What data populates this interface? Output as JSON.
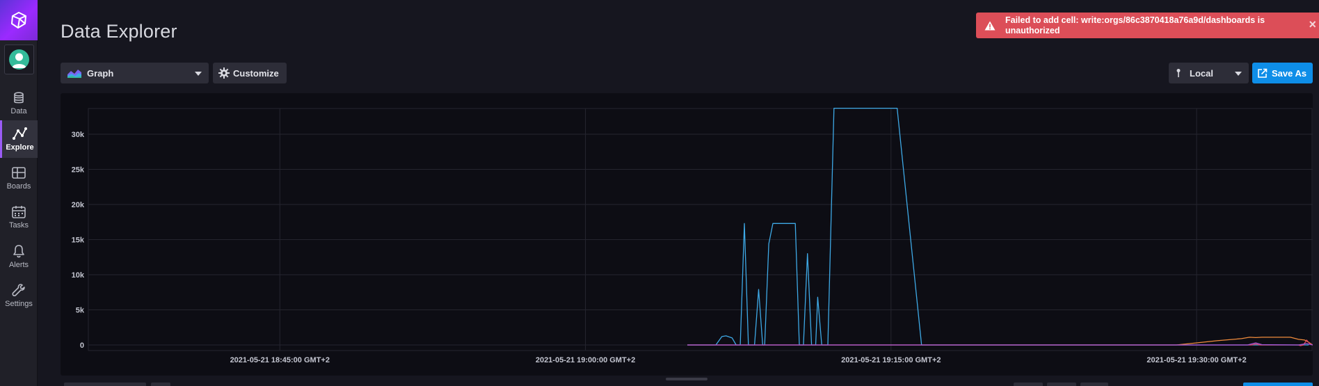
{
  "sidebar": {
    "logo_icon": "influx-cube-icon",
    "avatar_icon": "user-avatar-icon",
    "items": [
      {
        "label": "Data",
        "icon": "database-icon",
        "active": false
      },
      {
        "label": "Explore",
        "icon": "graph-line-icon",
        "active": true
      },
      {
        "label": "Boards",
        "icon": "dashboard-grid-icon",
        "active": false
      },
      {
        "label": "Tasks",
        "icon": "calendar-icon",
        "active": false
      },
      {
        "label": "Alerts",
        "icon": "bell-icon",
        "active": false
      },
      {
        "label": "Settings",
        "icon": "wrench-icon",
        "active": false
      }
    ]
  },
  "header": {
    "title": "Data Explorer"
  },
  "toolbar": {
    "view_type": "Graph",
    "customize_label": "Customize",
    "timezone": "Local",
    "save_as_label": "Save As"
  },
  "alert": {
    "message": "Failed to add cell: write:orgs/86c3870418a76a9d/dashboards is unauthorized",
    "close_symbol": "×"
  },
  "colors": {
    "accent": "#0e8ee8",
    "alert_bg": "#dc4e58",
    "series_blue": "#3ea9e6",
    "series_orange": "#f08b3c",
    "series_red": "#e0445e",
    "series_purple": "#9f56d8"
  },
  "chart_data": {
    "type": "line",
    "y_ticks": [
      0,
      5000,
      10000,
      15000,
      20000,
      25000,
      30000
    ],
    "y_tick_labels": [
      "0",
      "5k",
      "10k",
      "15k",
      "20k",
      "25k",
      "30k"
    ],
    "ylim": [
      0,
      34000
    ],
    "x_tick_labels": [
      "2021-05-21 18:45:00 GMT+2",
      "2021-05-21 19:00:00 GMT+2",
      "2021-05-21 19:15:00 GMT+2",
      "2021-05-21 19:30:00 GMT+2"
    ],
    "x_ticks_min": [
      0,
      15,
      30,
      45
    ],
    "xlim_min": [
      -9.4,
      50.7
    ],
    "grid": true,
    "series": [
      {
        "color": "#3ea9e6",
        "points": [
          [
            20.0,
            0
          ],
          [
            21.4,
            0
          ],
          [
            21.7,
            1200
          ],
          [
            21.9,
            1300
          ],
          [
            22.2,
            1000
          ],
          [
            22.4,
            0
          ],
          [
            22.6,
            0
          ],
          [
            22.8,
            17300
          ],
          [
            23.0,
            0
          ],
          [
            23.3,
            0
          ],
          [
            23.5,
            7900
          ],
          [
            23.7,
            0
          ],
          [
            23.8,
            0
          ],
          [
            24.0,
            14400
          ],
          [
            24.2,
            17300
          ],
          [
            25.0,
            17300
          ],
          [
            25.3,
            17300
          ],
          [
            25.5,
            0
          ],
          [
            25.7,
            0
          ],
          [
            25.9,
            13000
          ],
          [
            26.1,
            0
          ],
          [
            26.3,
            0
          ],
          [
            26.4,
            6800
          ],
          [
            26.6,
            0
          ],
          [
            26.9,
            0
          ],
          [
            27.2,
            33700
          ],
          [
            28.8,
            33700
          ],
          [
            30.0,
            33700
          ],
          [
            30.3,
            33700
          ],
          [
            31.5,
            0
          ],
          [
            41.0,
            0
          ],
          [
            50.5,
            0
          ]
        ]
      },
      {
        "color": "#f08b3c",
        "points": [
          [
            20.0,
            0
          ],
          [
            32.0,
            0
          ],
          [
            38.0,
            0
          ],
          [
            44.0,
            0
          ],
          [
            45.0,
            300
          ],
          [
            46.0,
            600
          ],
          [
            47.2,
            900
          ],
          [
            47.6,
            1100
          ],
          [
            47.9,
            1050
          ],
          [
            48.2,
            1100
          ],
          [
            49.0,
            1100
          ],
          [
            49.6,
            1100
          ],
          [
            50.0,
            800
          ],
          [
            50.3,
            700
          ],
          [
            50.5,
            400
          ],
          [
            50.7,
            0
          ]
        ]
      },
      {
        "color": "#e0445e",
        "points": [
          [
            20.0,
            0
          ],
          [
            30.0,
            0
          ],
          [
            45.0,
            0
          ],
          [
            47.7,
            0
          ],
          [
            47.9,
            150
          ],
          [
            48.1,
            0
          ],
          [
            50.0,
            0
          ],
          [
            50.1,
            -100
          ],
          [
            50.25,
            0
          ],
          [
            50.4,
            700
          ],
          [
            50.55,
            200
          ],
          [
            50.7,
            0
          ]
        ]
      },
      {
        "color": "#9f56d8",
        "points": [
          [
            20.0,
            0
          ],
          [
            40.0,
            0
          ],
          [
            47.5,
            0
          ],
          [
            47.9,
            300
          ],
          [
            48.2,
            50
          ],
          [
            50.0,
            0
          ],
          [
            50.4,
            200
          ],
          [
            50.7,
            0
          ]
        ]
      }
    ]
  }
}
